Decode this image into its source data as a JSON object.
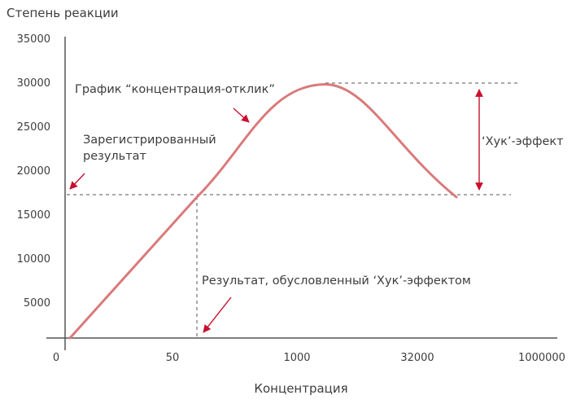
{
  "chart_data": {
    "type": "line",
    "ylabel": "Степень реакции",
    "xlabel": "Концентрация",
    "y_ticks": [
      "35000",
      "30000",
      "25000",
      "20000",
      "15000",
      "10000",
      "5000"
    ],
    "x_ticks": [
      "0",
      "50",
      "1000",
      "32000",
      "1000000"
    ],
    "ylim": [
      0,
      35000
    ],
    "grid": false,
    "series": [
      {
        "x": [
          "0",
          "50",
          "1000",
          "32000"
        ],
        "y": [
          0,
          16500,
          29700,
          16500
        ]
      }
    ],
    "annotations": {
      "curve_label": "График “концентрация-отклик”",
      "registered_result": "Зарегистрированный\nрезультат",
      "hook_effect": "‘Хук’-эффект",
      "hook_result": "Результат, обусловленный ‘Хук’-эффектом"
    },
    "colors": {
      "curve": "#d97a7a",
      "arrow": "#c8102e",
      "axis": "#555555",
      "dash": "#555555"
    }
  }
}
